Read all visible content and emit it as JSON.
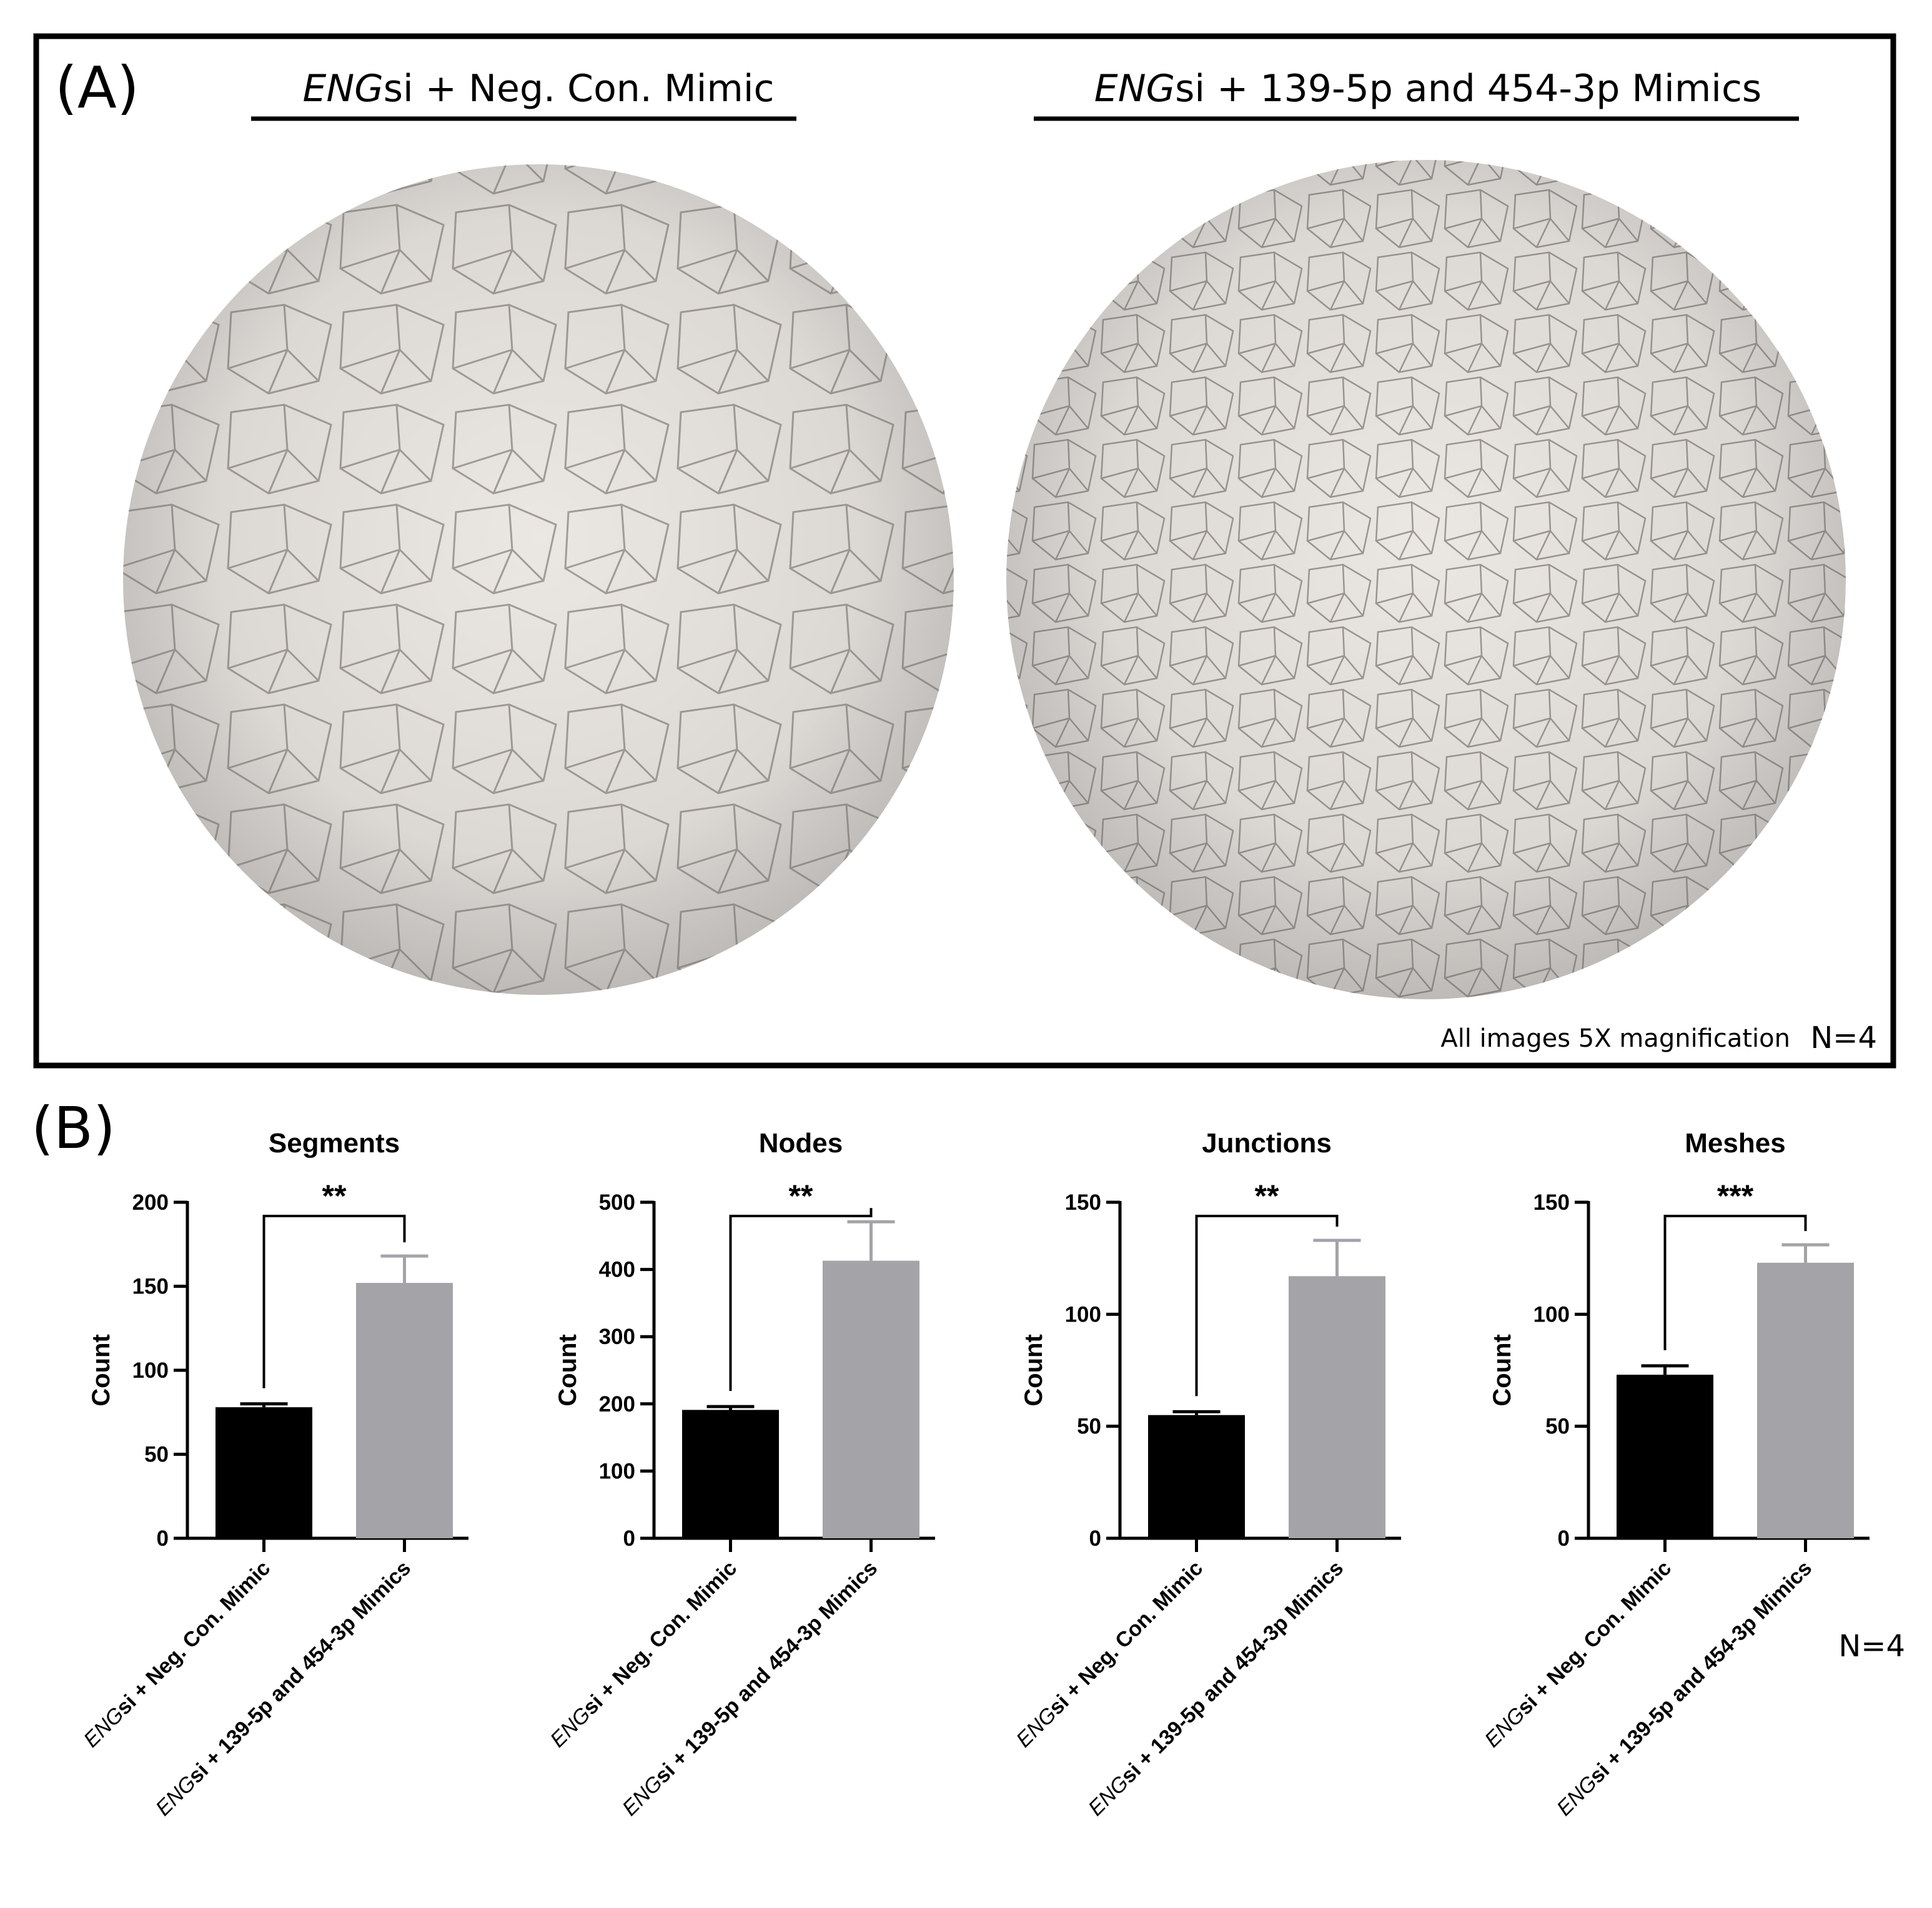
{
  "panel_a": {
    "label": "(A)",
    "images": [
      {
        "title_italic": "ENG",
        "title_rest": "si + Neg. Con. Mimic"
      },
      {
        "title_italic": "ENG",
        "title_rest": "si + 139-5p and 454-3p Mimics"
      }
    ],
    "magnification_note": "All images 5X magnification",
    "n_label": "N=4"
  },
  "panel_b": {
    "label": "(B)",
    "n_label": "N=4"
  },
  "colors": {
    "group1": "#000000",
    "group2": "#a3a3a8"
  },
  "chart_data": [
    {
      "type": "bar",
      "title": "Segments",
      "ylabel": "Count",
      "ylim": [
        0,
        200
      ],
      "yticks": [
        0,
        50,
        100,
        150,
        200
      ],
      "categories": [
        {
          "italic": "ENG",
          "rest": "si + Neg. Con. Mimic"
        },
        {
          "italic": "ENG",
          "rest": "si + 139-5p and 454-3p Mimics"
        }
      ],
      "values": [
        78,
        152
      ],
      "errors": [
        2,
        16
      ],
      "significance": "**"
    },
    {
      "type": "bar",
      "title": "Nodes",
      "ylabel": "Count",
      "ylim": [
        0,
        500
      ],
      "yticks": [
        0,
        100,
        200,
        300,
        400,
        500
      ],
      "categories": [
        {
          "italic": "ENG",
          "rest": "si + Neg. Con. Mimic"
        },
        {
          "italic": "ENG",
          "rest": "si + 139-5p and 454-3p Mimics"
        }
      ],
      "values": [
        191,
        413
      ],
      "errors": [
        5,
        58
      ],
      "significance": "**"
    },
    {
      "type": "bar",
      "title": "Junctions",
      "ylabel": "Count",
      "ylim": [
        0,
        150
      ],
      "yticks": [
        0,
        50,
        100,
        150
      ],
      "categories": [
        {
          "italic": "ENG",
          "rest": "si + Neg. Con. Mimic"
        },
        {
          "italic": "ENG",
          "rest": "si + 139-5p and 454-3p Mimics"
        }
      ],
      "values": [
        55,
        117
      ],
      "errors": [
        1.5,
        16
      ],
      "significance": "**"
    },
    {
      "type": "bar",
      "title": "Meshes",
      "ylabel": "Count",
      "ylim": [
        0,
        150
      ],
      "yticks": [
        0,
        50,
        100,
        150
      ],
      "categories": [
        {
          "italic": "ENG",
          "rest": "si + Neg. Con. Mimic"
        },
        {
          "italic": "ENG",
          "rest": "si + 139-5p and 454-3p Mimics"
        }
      ],
      "values": [
        73,
        123
      ],
      "errors": [
        4,
        8
      ],
      "significance": "***"
    }
  ]
}
